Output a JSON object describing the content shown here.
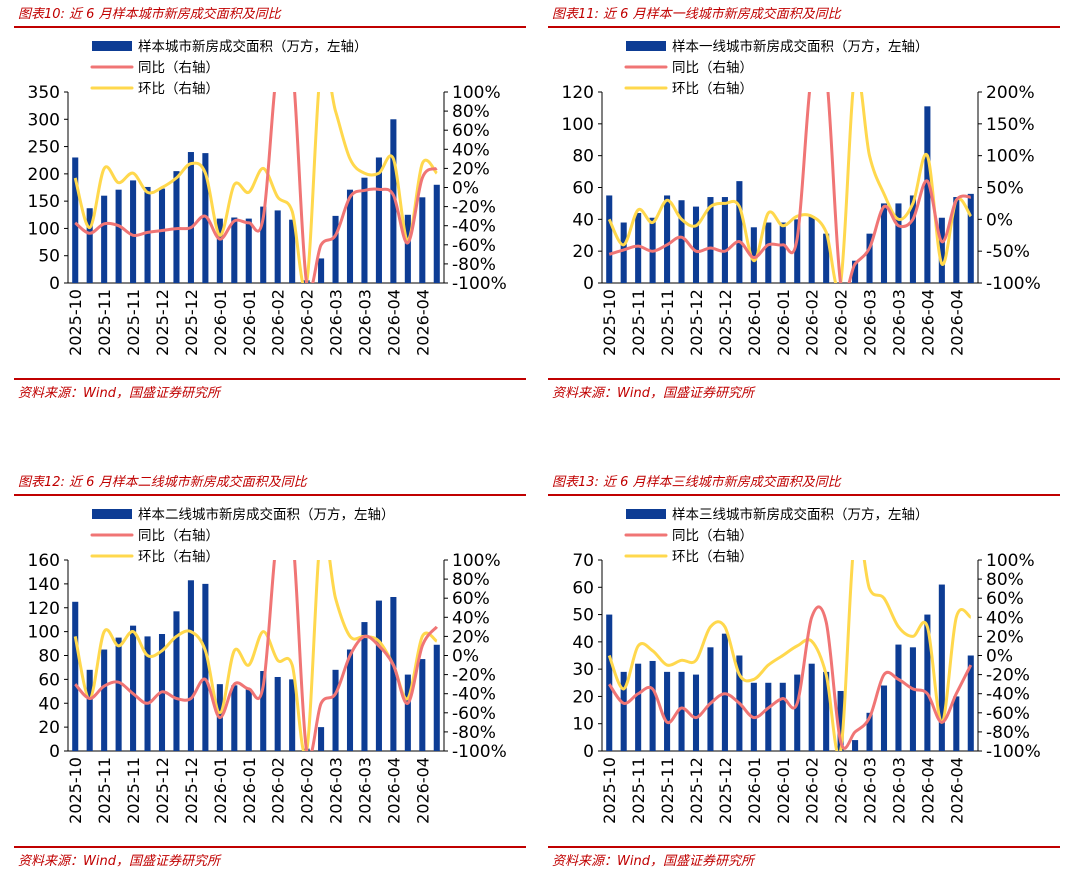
{
  "source_text": "资料来源：Wind，国盛证券研究所",
  "colors": {
    "bar": "#0d3c94",
    "yoy": "#f07575",
    "mom": "#ffd84d",
    "caption": "#c00000"
  },
  "chart_data": [
    {
      "type": "bar",
      "title": "图表10:  近 6 月样本城市新房成交面积及同比",
      "legend": [
        "样本城市新房成交面积（万方，左轴）",
        "同比（右轴）",
        "环比（右轴）"
      ],
      "left_ticks": [
        "350",
        "300",
        "250",
        "200",
        "150",
        "100",
        "50",
        "0"
      ],
      "right_ticks": [
        "100%",
        "80%",
        "60%",
        "40%",
        "20%",
        "0%",
        "-20%",
        "-40%",
        "-60%",
        "-80%",
        "-100%"
      ],
      "x_ticks": [
        "2025-10",
        "2025-11",
        "2025-11",
        "2025-12",
        "2025-12",
        "2026-01",
        "2026-01",
        "2026-02",
        "2026-02",
        "2026-03",
        "2026-03",
        "2026-04",
        "2026-04"
      ],
      "ylim": [
        0,
        350
      ],
      "y2lim": [
        -100,
        100
      ],
      "series": [
        {
          "name": "样本城市新房成交面积（万方，左轴）",
          "type": "bar",
          "axis": "left",
          "values": [
            230,
            137,
            160,
            171,
            188,
            176,
            173,
            205,
            240,
            238,
            118,
            120,
            118,
            140,
            133,
            116,
            5,
            45,
            123,
            171,
            193,
            230,
            300,
            125,
            157,
            180
          ]
        },
        {
          "name": "同比（右轴）",
          "type": "line",
          "axis": "right",
          "values": [
            -37,
            -48,
            -38,
            -40,
            -50,
            -47,
            -45,
            -43,
            -42,
            -30,
            -54,
            -35,
            -37,
            -32,
            200,
            130,
            -100,
            -60,
            -50,
            -10,
            -3,
            -2,
            -8,
            -58,
            10,
            20
          ]
        },
        {
          "name": "环比（右轴）",
          "type": "line",
          "axis": "right",
          "values": [
            10,
            -42,
            20,
            5,
            15,
            -5,
            0,
            10,
            25,
            15,
            -50,
            3,
            -5,
            20,
            -10,
            -25,
            -100,
            140,
            80,
            30,
            15,
            15,
            30,
            -55,
            25,
            15
          ]
        }
      ]
    },
    {
      "type": "bar",
      "title": "图表11:  近 6 月样本一线城市新房成交面积及同比",
      "legend": [
        "样本一线城市新房成交面积（万方，左轴）",
        "同比（右轴）",
        "环比（右轴）"
      ],
      "left_ticks": [
        "120",
        "100",
        "80",
        "60",
        "40",
        "20",
        "0"
      ],
      "right_ticks": [
        "200%",
        "150%",
        "100%",
        "50%",
        "0%",
        "-50%",
        "-100%"
      ],
      "x_ticks": [
        "2025-10",
        "2025-11",
        "2025-11",
        "2025-12",
        "2025-12",
        "2026-01",
        "2026-01",
        "2026-02",
        "2026-02",
        "2026-03",
        "2026-03",
        "2026-04",
        "2026-04"
      ],
      "ylim": [
        0,
        120
      ],
      "y2lim": [
        -100,
        200
      ],
      "series": [
        {
          "name": "样本一线城市新房成交面积（万方，左轴）",
          "type": "bar",
          "axis": "left",
          "values": [
            55,
            38,
            44,
            41,
            55,
            52,
            48,
            54,
            54,
            64,
            35,
            38,
            38,
            40,
            42,
            31,
            0,
            14,
            31,
            50,
            50,
            55,
            111,
            41,
            54,
            56
          ]
        },
        {
          "name": "同比（右轴）",
          "type": "line",
          "axis": "right",
          "values": [
            -55,
            -48,
            -42,
            -50,
            -40,
            -28,
            -50,
            -45,
            -50,
            -35,
            -60,
            -40,
            -40,
            -30,
            400,
            300,
            -100,
            -70,
            -45,
            20,
            -10,
            0,
            60,
            -35,
            30,
            35
          ]
        },
        {
          "name": "环比（右轴）",
          "type": "line",
          "axis": "right",
          "values": [
            0,
            -40,
            15,
            -5,
            30,
            0,
            -10,
            20,
            25,
            20,
            -65,
            10,
            -10,
            5,
            5,
            -20,
            -100,
            400,
            100,
            40,
            0,
            25,
            100,
            -70,
            30,
            5
          ]
        }
      ]
    },
    {
      "type": "bar",
      "title": "图表12:  近 6 月样本二线城市新房成交面积及同比",
      "legend": [
        "样本二线城市新房成交面积（万方，左轴）",
        "同比（右轴）",
        "环比（右轴）"
      ],
      "left_ticks": [
        "160",
        "140",
        "120",
        "100",
        "80",
        "60",
        "40",
        "20",
        "0"
      ],
      "right_ticks": [
        "100%",
        "80%",
        "60%",
        "40%",
        "20%",
        "0%",
        "-20%",
        "-40%",
        "-60%",
        "-80%",
        "-100%"
      ],
      "x_ticks": [
        "2025-10",
        "2025-11",
        "2025-11",
        "2025-12",
        "2025-12",
        "2026-01",
        "2026-01",
        "2026-02",
        "2026-02",
        "2026-03",
        "2026-03",
        "2026-04",
        "2026-04"
      ],
      "ylim": [
        0,
        160
      ],
      "y2lim": [
        -100,
        100
      ],
      "series": [
        {
          "name": "样本二线城市新房成交面积（万方，左轴）",
          "type": "bar",
          "axis": "left",
          "values": [
            125,
            68,
            85,
            95,
            105,
            96,
            98,
            117,
            143,
            140,
            56,
            55,
            52,
            67,
            62,
            60,
            2,
            20,
            68,
            85,
            108,
            126,
            129,
            64,
            77,
            89
          ]
        },
        {
          "name": "同比（右轴）",
          "type": "line",
          "axis": "right",
          "values": [
            -30,
            -45,
            -32,
            -28,
            -40,
            -50,
            -38,
            -45,
            -45,
            -25,
            -65,
            -30,
            -35,
            -32,
            130,
            150,
            -100,
            -50,
            -40,
            0,
            20,
            10,
            -10,
            -50,
            10,
            30
          ]
        },
        {
          "name": "环比（右轴）",
          "type": "line",
          "axis": "right",
          "values": [
            20,
            -45,
            25,
            10,
            25,
            0,
            5,
            20,
            25,
            5,
            -60,
            5,
            -10,
            25,
            -5,
            -10,
            -100,
            150,
            60,
            20,
            20,
            15,
            -10,
            -45,
            20,
            15
          ]
        }
      ]
    },
    {
      "type": "bar",
      "title": "图表13:  近 6 月样本三线城市新房成交面积及同比",
      "legend": [
        "样本三线城市新房成交面积（万方，左轴）",
        "同比（右轴）",
        "环比（右轴）"
      ],
      "left_ticks": [
        "70",
        "60",
        "50",
        "40",
        "30",
        "20",
        "10",
        "0"
      ],
      "right_ticks": [
        "100%",
        "80%",
        "60%",
        "40%",
        "20%",
        "0%",
        "-20%",
        "-40%",
        "-60%",
        "-80%",
        "-100%"
      ],
      "x_ticks": [
        "2025-10",
        "2025-11",
        "2025-11",
        "2025-12",
        "2025-12",
        "2026-01",
        "2026-01",
        "2026-02",
        "2026-02",
        "2026-03",
        "2026-03",
        "2026-04",
        "2026-04"
      ],
      "ylim": [
        0,
        70
      ],
      "y2lim": [
        -100,
        100
      ],
      "series": [
        {
          "name": "样本三线城市新房成交面积（万方，左轴）",
          "type": "bar",
          "axis": "left",
          "values": [
            50,
            29,
            32,
            33,
            29,
            29,
            28,
            38,
            43,
            35,
            25,
            25,
            25,
            28,
            32,
            29,
            22,
            4,
            14,
            24,
            39,
            38,
            50,
            61,
            20,
            35
          ]
        },
        {
          "name": "同比（右轴）",
          "type": "line",
          "axis": "right",
          "values": [
            -30,
            -50,
            -40,
            -35,
            -70,
            -55,
            -65,
            -50,
            -40,
            -50,
            -65,
            -55,
            -45,
            -50,
            40,
            35,
            -90,
            -80,
            -65,
            -20,
            -25,
            -35,
            -40,
            -70,
            -40,
            -10
          ]
        },
        {
          "name": "环比（右轴）",
          "type": "line",
          "axis": "right",
          "values": [
            0,
            -35,
            10,
            5,
            -10,
            -5,
            -5,
            30,
            30,
            -20,
            -25,
            -10,
            0,
            10,
            15,
            -20,
            -100,
            200,
            70,
            60,
            30,
            20,
            30,
            -70,
            40,
            40
          ]
        }
      ]
    }
  ]
}
